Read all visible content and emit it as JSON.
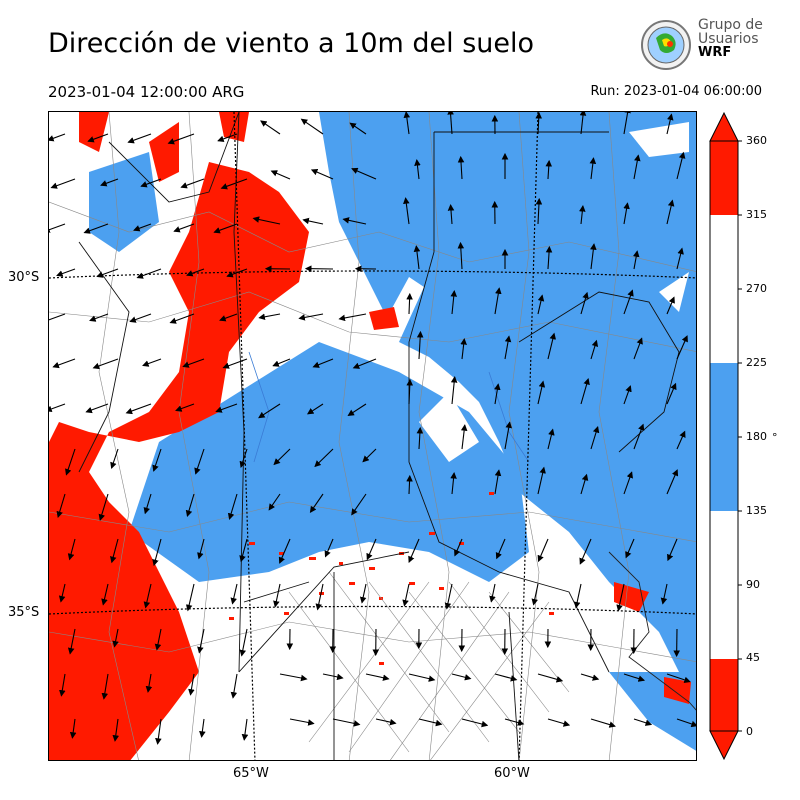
{
  "header": {
    "title": "Dirección de viento a 10m del suelo",
    "valid_time": "2023-01-04 12:00:00 ARG",
    "run_time": "Run: 2023-01-04 06:00:00"
  },
  "logo": {
    "line1": "Grupo de",
    "line2": "Usuarios",
    "line3": "WRF"
  },
  "map": {
    "lat_labels": [
      "30°S",
      "35°S"
    ],
    "lon_labels": [
      "65°W",
      "60°W"
    ]
  },
  "colorbar": {
    "unit": "°",
    "ticks": [
      "360",
      "315",
      "270",
      "225",
      "180",
      "135",
      "90",
      "45",
      "0"
    ],
    "bins": [
      {
        "from": 0,
        "to": 45,
        "color": "#ff1a00"
      },
      {
        "from": 45,
        "to": 135,
        "color": "#ffffff"
      },
      {
        "from": 135,
        "to": 225,
        "color": "#4ca0f0"
      },
      {
        "from": 225,
        "to": 315,
        "color": "#ffffff"
      },
      {
        "from": 315,
        "to": 360,
        "color": "#ff1a00"
      }
    ]
  },
  "colors": {
    "red": "#ff1a00",
    "blue": "#4ca0f0",
    "white": "#ffffff"
  }
}
